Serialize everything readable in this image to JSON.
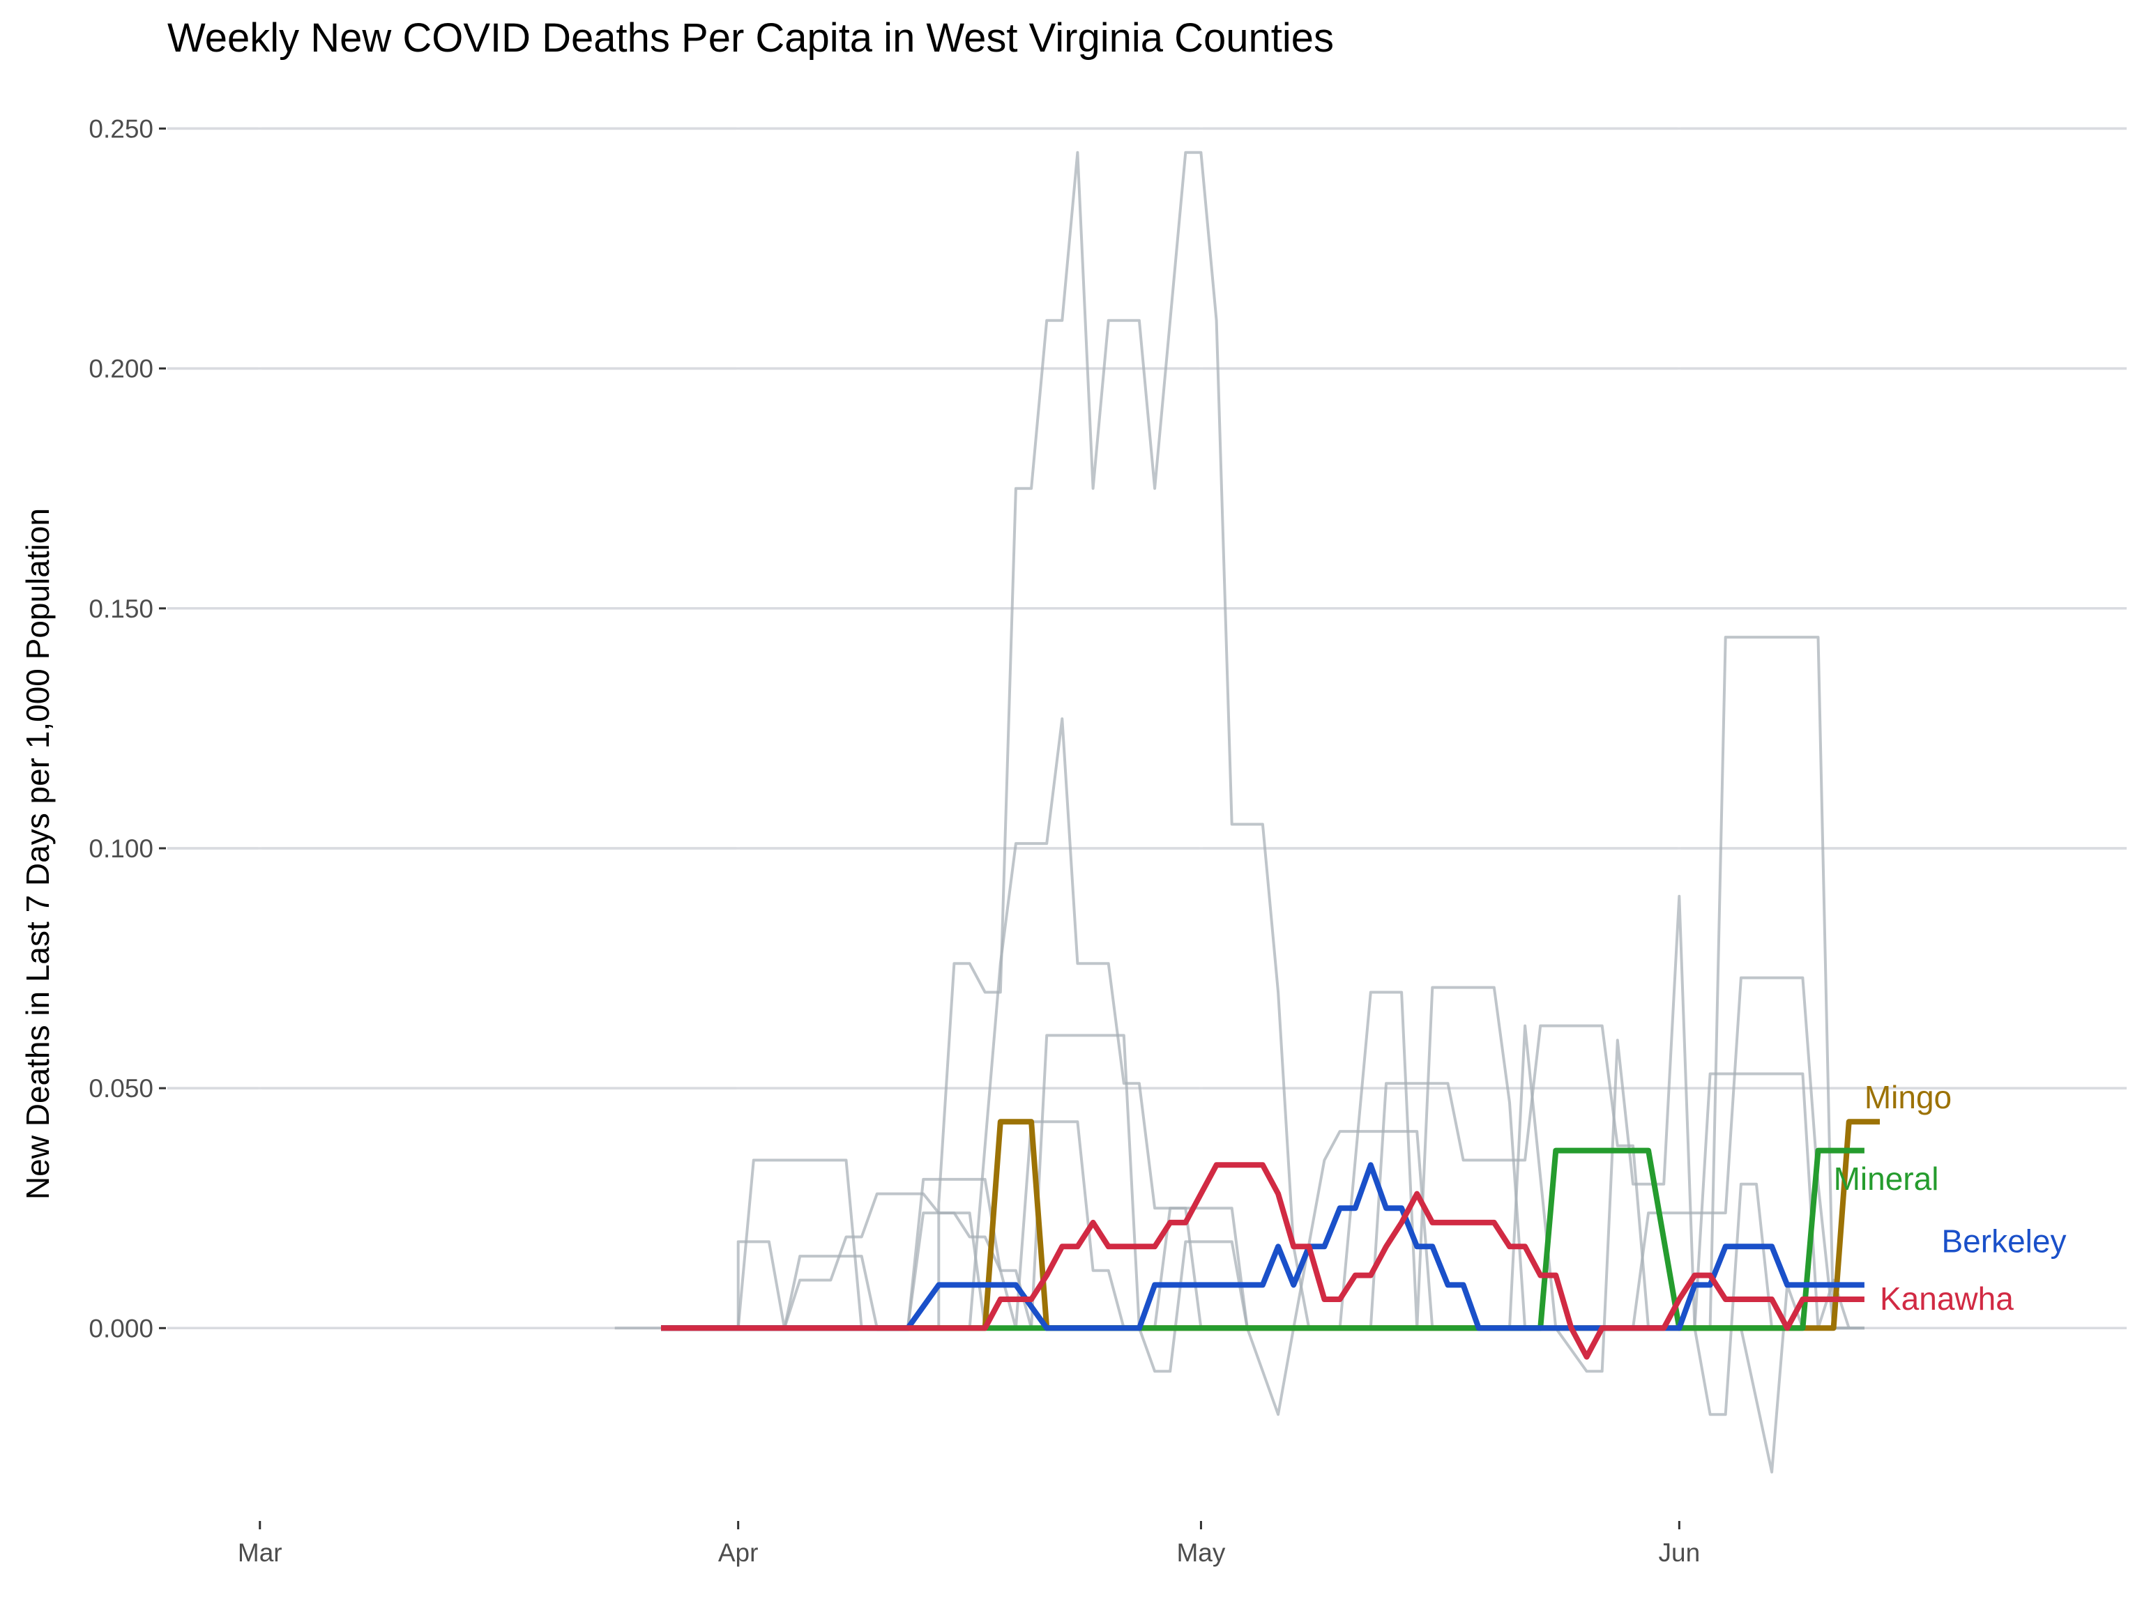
{
  "chart_data": {
    "type": "line",
    "title": "Weekly New COVID Deaths Per Capita in West Virginia Counties",
    "xlabel": "",
    "ylabel": "New Deaths in Last 7 Days per 1,000 Population",
    "x_axis": {
      "type": "date",
      "range": [
        "2020-02-24",
        "2020-06-30"
      ],
      "ticks": [
        {
          "date": "2020-03-01",
          "label": "Mar"
        },
        {
          "date": "2020-04-01",
          "label": "Apr"
        },
        {
          "date": "2020-05-01",
          "label": "May"
        },
        {
          "date": "2020-06-01",
          "label": "Jun"
        }
      ]
    },
    "y_axis": {
      "range": [
        -0.037,
        0.255
      ],
      "ticks": [
        {
          "value": 0.0,
          "label": "0.000"
        },
        {
          "value": 0.05,
          "label": "0.050"
        },
        {
          "value": 0.1,
          "label": "0.100"
        },
        {
          "value": 0.15,
          "label": "0.150"
        },
        {
          "value": 0.2,
          "label": "0.200"
        },
        {
          "value": 0.25,
          "label": "0.250"
        }
      ]
    },
    "grid": true,
    "legend": "none",
    "highlighted_series": [
      {
        "name": "Mingo",
        "color": "#9c7205",
        "label_position": {
          "date": "2020-06-13",
          "value": 0.048
        },
        "points": [
          [
            "2020-03-27",
            0
          ],
          [
            "2020-04-17",
            0
          ],
          [
            "2020-04-18",
            0.043
          ],
          [
            "2020-04-20",
            0.043
          ],
          [
            "2020-04-21",
            0
          ],
          [
            "2020-06-11",
            0
          ],
          [
            "2020-06-12",
            0.043
          ],
          [
            "2020-06-14",
            0.043
          ]
        ]
      },
      {
        "name": "Mineral",
        "color": "#259c2e",
        "label_position": {
          "date": "2020-06-11",
          "value": 0.031
        },
        "points": [
          [
            "2020-04-10",
            0
          ],
          [
            "2020-05-23",
            0
          ],
          [
            "2020-05-24",
            0.037
          ],
          [
            "2020-05-30",
            0.037
          ],
          [
            "2020-06-01",
            0
          ],
          [
            "2020-06-09",
            0
          ],
          [
            "2020-06-10",
            0.037
          ],
          [
            "2020-06-13",
            0.037
          ]
        ]
      },
      {
        "name": "Berkeley",
        "color": "#1a50c9",
        "label_position": {
          "date": "2020-06-18",
          "value": 0.018
        },
        "points": [
          [
            "2020-03-27",
            0
          ],
          [
            "2020-04-12",
            0
          ],
          [
            "2020-04-14",
            0.009
          ],
          [
            "2020-04-19",
            0.009
          ],
          [
            "2020-04-21",
            0
          ],
          [
            "2020-04-27",
            0
          ],
          [
            "2020-04-28",
            0.009
          ],
          [
            "2020-05-05",
            0.009
          ],
          [
            "2020-05-06",
            0.017
          ],
          [
            "2020-05-07",
            0.009
          ],
          [
            "2020-05-08",
            0.017
          ],
          [
            "2020-05-09",
            0.017
          ],
          [
            "2020-05-10",
            0.025
          ],
          [
            "2020-05-11",
            0.025
          ],
          [
            "2020-05-12",
            0.034
          ],
          [
            "2020-05-13",
            0.025
          ],
          [
            "2020-05-14",
            0.025
          ],
          [
            "2020-05-15",
            0.017
          ],
          [
            "2020-05-16",
            0.017
          ],
          [
            "2020-05-17",
            0.009
          ],
          [
            "2020-05-18",
            0.009
          ],
          [
            "2020-05-19",
            0
          ],
          [
            "2020-06-01",
            0
          ],
          [
            "2020-06-02",
            0.009
          ],
          [
            "2020-06-03",
            0.009
          ],
          [
            "2020-06-04",
            0.017
          ],
          [
            "2020-06-07",
            0.017
          ],
          [
            "2020-06-08",
            0.009
          ],
          [
            "2020-06-13",
            0.009
          ]
        ]
      },
      {
        "name": "Kanawha",
        "color": "#d12a43",
        "label_position": {
          "date": "2020-06-14",
          "value": 0.006
        },
        "points": [
          [
            "2020-03-27",
            0
          ],
          [
            "2020-04-17",
            0
          ],
          [
            "2020-04-18",
            0.006
          ],
          [
            "2020-04-20",
            0.006
          ],
          [
            "2020-04-21",
            0.011
          ],
          [
            "2020-04-22",
            0.017
          ],
          [
            "2020-04-23",
            0.017
          ],
          [
            "2020-04-24",
            0.022
          ],
          [
            "2020-04-25",
            0.017
          ],
          [
            "2020-04-28",
            0.017
          ],
          [
            "2020-04-29",
            0.022
          ],
          [
            "2020-04-30",
            0.022
          ],
          [
            "2020-05-01",
            0.028
          ],
          [
            "2020-05-02",
            0.034
          ],
          [
            "2020-05-04",
            0.034
          ],
          [
            "2020-05-05",
            0.034
          ],
          [
            "2020-05-06",
            0.028
          ],
          [
            "2020-05-07",
            0.017
          ],
          [
            "2020-05-08",
            0.017
          ],
          [
            "2020-05-09",
            0.006
          ],
          [
            "2020-05-10",
            0.006
          ],
          [
            "2020-05-11",
            0.011
          ],
          [
            "2020-05-12",
            0.011
          ],
          [
            "2020-05-13",
            0.017
          ],
          [
            "2020-05-14",
            0.022
          ],
          [
            "2020-05-15",
            0.028
          ],
          [
            "2020-05-16",
            0.022
          ],
          [
            "2020-05-20",
            0.022
          ],
          [
            "2020-05-21",
            0.017
          ],
          [
            "2020-05-22",
            0.017
          ],
          [
            "2020-05-23",
            0.011
          ],
          [
            "2020-05-24",
            0.011
          ],
          [
            "2020-05-25",
            0
          ],
          [
            "2020-05-26",
            -0.006
          ],
          [
            "2020-05-27",
            0
          ],
          [
            "2020-05-31",
            0
          ],
          [
            "2020-06-01",
            0.006
          ],
          [
            "2020-06-02",
            0.011
          ],
          [
            "2020-06-03",
            0.011
          ],
          [
            "2020-06-04",
            0.006
          ],
          [
            "2020-06-07",
            0.006
          ],
          [
            "2020-06-08",
            0
          ],
          [
            "2020-06-09",
            0.006
          ],
          [
            "2020-06-13",
            0.006
          ]
        ]
      }
    ],
    "background_series": [
      [
        [
          "2020-03-24",
          0
        ],
        [
          "2020-06-13",
          0
        ]
      ],
      [
        [
          "2020-03-27",
          0
        ],
        [
          "2020-04-01",
          0
        ],
        [
          "2020-04-02",
          0.035
        ],
        [
          "2020-04-08",
          0.035
        ],
        [
          "2020-04-09",
          0
        ],
        [
          "2020-04-12",
          0
        ],
        [
          "2020-04-13",
          0.031
        ],
        [
          "2020-04-17",
          0.031
        ],
        [
          "2020-04-18",
          0.012
        ],
        [
          "2020-04-19",
          0.012
        ],
        [
          "2020-04-20",
          0
        ]
      ],
      [
        [
          "2020-04-01",
          0
        ],
        [
          "2020-04-01",
          0.018
        ],
        [
          "2020-04-03",
          0.018
        ],
        [
          "2020-04-04",
          0
        ],
        [
          "2020-04-05",
          0.015
        ],
        [
          "2020-04-09",
          0.015
        ],
        [
          "2020-04-10",
          0
        ],
        [
          "2020-06-13",
          0
        ]
      ],
      [
        [
          "2020-04-04",
          0
        ],
        [
          "2020-04-05",
          0.01
        ],
        [
          "2020-04-07",
          0.01
        ],
        [
          "2020-04-08",
          0.019
        ],
        [
          "2020-04-09",
          0.019
        ],
        [
          "2020-04-10",
          0.028
        ],
        [
          "2020-04-13",
          0.028
        ],
        [
          "2020-04-14",
          0.024
        ],
        [
          "2020-04-16",
          0.024
        ],
        [
          "2020-04-17",
          0
        ]
      ],
      [
        [
          "2020-04-12",
          0
        ],
        [
          "2020-04-13",
          0.024
        ],
        [
          "2020-04-15",
          0.024
        ],
        [
          "2020-04-16",
          0.019
        ],
        [
          "2020-04-17",
          0.019
        ],
        [
          "2020-04-18",
          0.012
        ],
        [
          "2020-04-19",
          0
        ],
        [
          "2020-04-20",
          0.043
        ],
        [
          "2020-04-23",
          0.043
        ],
        [
          "2020-04-24",
          0.012
        ],
        [
          "2020-04-25",
          0.012
        ],
        [
          "2020-04-26",
          0
        ]
      ],
      [
        [
          "2020-04-14",
          0
        ],
        [
          "2020-04-14",
          0.026
        ],
        [
          "2020-04-15",
          0.076
        ],
        [
          "2020-04-16",
          0.076
        ],
        [
          "2020-04-17",
          0.07
        ],
        [
          "2020-04-18",
          0.07
        ],
        [
          "2020-04-19",
          0.175
        ],
        [
          "2020-04-20",
          0.175
        ],
        [
          "2020-04-21",
          0.21
        ],
        [
          "2020-04-22",
          0.21
        ],
        [
          "2020-04-23",
          0.245
        ],
        [
          "2020-04-24",
          0.175
        ],
        [
          "2020-04-25",
          0.21
        ],
        [
          "2020-04-27",
          0.21
        ],
        [
          "2020-04-28",
          0.175
        ],
        [
          "2020-04-30",
          0.245
        ],
        [
          "2020-05-01",
          0.245
        ],
        [
          "2020-05-02",
          0.21
        ],
        [
          "2020-05-03",
          0.105
        ],
        [
          "2020-05-05",
          0.105
        ],
        [
          "2020-05-06",
          0.07
        ],
        [
          "2020-05-07",
          0.017
        ],
        [
          "2020-05-08",
          0
        ]
      ],
      [
        [
          "2020-04-16",
          0
        ],
        [
          "2020-04-18",
          0.076
        ],
        [
          "2020-04-19",
          0.101
        ],
        [
          "2020-04-21",
          0.101
        ],
        [
          "2020-04-22",
          0.127
        ],
        [
          "2020-04-23",
          0.076
        ],
        [
          "2020-04-25",
          0.076
        ],
        [
          "2020-04-26",
          0.051
        ],
        [
          "2020-04-27",
          0.051
        ],
        [
          "2020-04-28",
          0.025
        ],
        [
          "2020-04-30",
          0.025
        ],
        [
          "2020-05-01",
          0
        ]
      ],
      [
        [
          "2020-04-20",
          0
        ],
        [
          "2020-04-21",
          0.061
        ],
        [
          "2020-04-26",
          0.061
        ],
        [
          "2020-04-27",
          0
        ],
        [
          "2020-04-28",
          -0.009
        ],
        [
          "2020-04-29",
          -0.009
        ],
        [
          "2020-04-30",
          0.018
        ],
        [
          "2020-05-03",
          0.018
        ],
        [
          "2020-05-04",
          0
        ]
      ],
      [
        [
          "2020-04-28",
          0
        ],
        [
          "2020-04-29",
          0.025
        ],
        [
          "2020-05-03",
          0.025
        ],
        [
          "2020-05-04",
          0
        ],
        [
          "2020-05-06",
          -0.018
        ],
        [
          "2020-05-07",
          0
        ],
        [
          "2020-05-09",
          0.035
        ],
        [
          "2020-05-10",
          0.041
        ],
        [
          "2020-05-15",
          0.041
        ],
        [
          "2020-05-16",
          0
        ],
        [
          "2020-06-13",
          0
        ]
      ],
      [
        [
          "2020-05-10",
          0
        ],
        [
          "2020-05-12",
          0.07
        ],
        [
          "2020-05-14",
          0.07
        ],
        [
          "2020-05-15",
          0
        ],
        [
          "2020-05-16",
          0.071
        ],
        [
          "2020-05-20",
          0.071
        ],
        [
          "2020-05-21",
          0.047
        ],
        [
          "2020-05-22",
          0
        ]
      ],
      [
        [
          "2020-05-12",
          0
        ],
        [
          "2020-05-13",
          0.051
        ],
        [
          "2020-05-17",
          0.051
        ],
        [
          "2020-05-18",
          0.035
        ],
        [
          "2020-05-22",
          0.035
        ],
        [
          "2020-05-23",
          0.063
        ],
        [
          "2020-05-27",
          0.063
        ],
        [
          "2020-05-28",
          0.038
        ],
        [
          "2020-05-29",
          0.038
        ],
        [
          "2020-05-30",
          0
        ]
      ],
      [
        [
          "2020-05-21",
          0
        ],
        [
          "2020-05-22",
          0.063
        ],
        [
          "2020-05-24",
          0
        ],
        [
          "2020-05-26",
          -0.009
        ],
        [
          "2020-05-27",
          -0.009
        ],
        [
          "2020-05-28",
          0.06
        ],
        [
          "2020-05-29",
          0.03
        ],
        [
          "2020-05-31",
          0.03
        ],
        [
          "2020-06-01",
          0.09
        ],
        [
          "2020-06-02",
          0
        ],
        [
          "2020-06-03",
          -0.018
        ],
        [
          "2020-06-04",
          -0.018
        ],
        [
          "2020-06-05",
          0.03
        ],
        [
          "2020-06-06",
          0.03
        ],
        [
          "2020-06-07",
          0
        ]
      ],
      [
        [
          "2020-05-29",
          0
        ],
        [
          "2020-05-30",
          0.024
        ],
        [
          "2020-06-04",
          0.024
        ],
        [
          "2020-06-05",
          0.073
        ],
        [
          "2020-06-09",
          0.073
        ],
        [
          "2020-06-10",
          0.03
        ],
        [
          "2020-06-11",
          0
        ]
      ],
      [
        [
          "2020-06-03",
          0
        ],
        [
          "2020-06-04",
          0.144
        ],
        [
          "2020-06-10",
          0.144
        ],
        [
          "2020-06-11",
          0
        ]
      ],
      [
        [
          "2020-06-02",
          0
        ],
        [
          "2020-06-03",
          0.053
        ],
        [
          "2020-06-09",
          0.053
        ],
        [
          "2020-06-10",
          0
        ],
        [
          "2020-06-11",
          0.01
        ],
        [
          "2020-06-12",
          0
        ]
      ],
      [
        [
          "2020-06-05",
          0
        ],
        [
          "2020-06-07",
          -0.03
        ],
        [
          "2020-06-08",
          0.009
        ],
        [
          "2020-06-09",
          0
        ]
      ]
    ]
  }
}
